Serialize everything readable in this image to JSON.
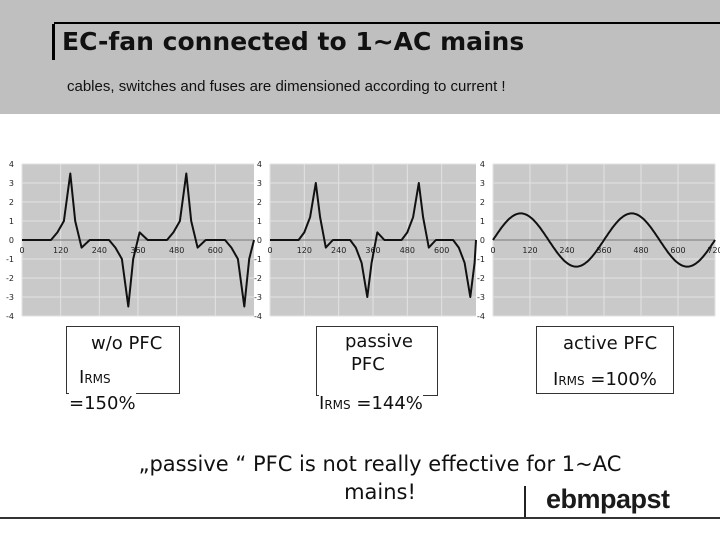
{
  "header": {
    "title": "EC-fan connected to 1~AC mains",
    "subtitle": "cables, switches and fuses are dimensioned according to current !"
  },
  "chart_data": [
    {
      "type": "line",
      "name_label": "w/o PFC",
      "x_ticks": [
        0,
        120,
        240,
        360,
        480,
        600
      ],
      "y_ticks": [
        4,
        3,
        2,
        1,
        0,
        -1,
        -2,
        -3,
        -4
      ],
      "ylim": [
        -4,
        4
      ],
      "xlim": [
        0,
        720
      ],
      "series": [
        {
          "values": [
            [
              0,
              0
            ],
            [
              90,
              0
            ],
            [
              110,
              0.4
            ],
            [
              130,
              1.0
            ],
            [
              150,
              3.5
            ],
            [
              165,
              1.0
            ],
            [
              185,
              -0.4
            ],
            [
              210,
              0
            ],
            [
              270,
              0
            ],
            [
              290,
              -0.4
            ],
            [
              310,
              -1.0
            ],
            [
              330,
              -3.5
            ],
            [
              345,
              -1.0
            ],
            [
              365,
              0.4
            ],
            [
              390,
              0
            ],
            [
              450,
              0
            ],
            [
              470,
              0.4
            ],
            [
              490,
              1.0
            ],
            [
              510,
              3.5
            ],
            [
              525,
              1.0
            ],
            [
              545,
              -0.4
            ],
            [
              570,
              0
            ],
            [
              630,
              0
            ],
            [
              650,
              -0.4
            ],
            [
              670,
              -1.0
            ],
            [
              690,
              -3.5
            ],
            [
              705,
              -1.0
            ],
            [
              720,
              0
            ]
          ]
        }
      ]
    },
    {
      "type": "line",
      "name_label": "passive PFC",
      "x_ticks": [
        0,
        120,
        240,
        360,
        480,
        600
      ],
      "y_ticks": [
        4,
        3,
        2,
        1,
        0,
        -1,
        -2,
        -3,
        -4
      ],
      "ylim": [
        -4,
        4
      ],
      "xlim": [
        0,
        720
      ],
      "series": [
        {
          "values": [
            [
              0,
              0
            ],
            [
              100,
              0
            ],
            [
              120,
              0.4
            ],
            [
              140,
              1.2
            ],
            [
              160,
              3.0
            ],
            [
              175,
              1.2
            ],
            [
              195,
              -0.4
            ],
            [
              220,
              0
            ],
            [
              280,
              0
            ],
            [
              300,
              -0.4
            ],
            [
              320,
              -1.2
            ],
            [
              340,
              -3.0
            ],
            [
              355,
              -1.2
            ],
            [
              375,
              0.4
            ],
            [
              400,
              0
            ],
            [
              460,
              0
            ],
            [
              480,
              0.4
            ],
            [
              500,
              1.2
            ],
            [
              520,
              3.0
            ],
            [
              535,
              1.2
            ],
            [
              555,
              -0.4
            ],
            [
              580,
              0
            ],
            [
              640,
              0
            ],
            [
              660,
              -0.4
            ],
            [
              680,
              -1.2
            ],
            [
              700,
              -3.0
            ],
            [
              715,
              -1.2
            ],
            [
              720,
              0
            ]
          ]
        }
      ]
    },
    {
      "type": "line",
      "name_label": "active PFC",
      "x_ticks": [
        0,
        120,
        240,
        360,
        480,
        600,
        720
      ],
      "y_ticks": [
        4,
        3,
        2,
        1,
        0,
        -1,
        -2,
        -3,
        -4
      ],
      "ylim": [
        -4,
        4
      ],
      "xlim": [
        0,
        720
      ],
      "series": [
        {
          "values": "sine",
          "amplitude": 1.4,
          "period": 360
        }
      ]
    }
  ],
  "boxes": [
    {
      "label": "w/o PFC",
      "irms_prefix": "I",
      "irms_sub": "RMS",
      "irms_value": "=150%"
    },
    {
      "label_line1": "passive",
      "label_line2": "PFC",
      "irms_prefix": "I",
      "irms_sub": "RMS",
      "irms_value": "=144%"
    },
    {
      "label": "active PFC",
      "irms_prefix": "I",
      "irms_sub": "RMS",
      "irms_value": "=100%"
    }
  ],
  "bottom_note": {
    "line1": "„passive  “ PFC is not really effective for 1~AC",
    "line2": "mains!"
  },
  "logo": {
    "text": "ebmpapst"
  }
}
